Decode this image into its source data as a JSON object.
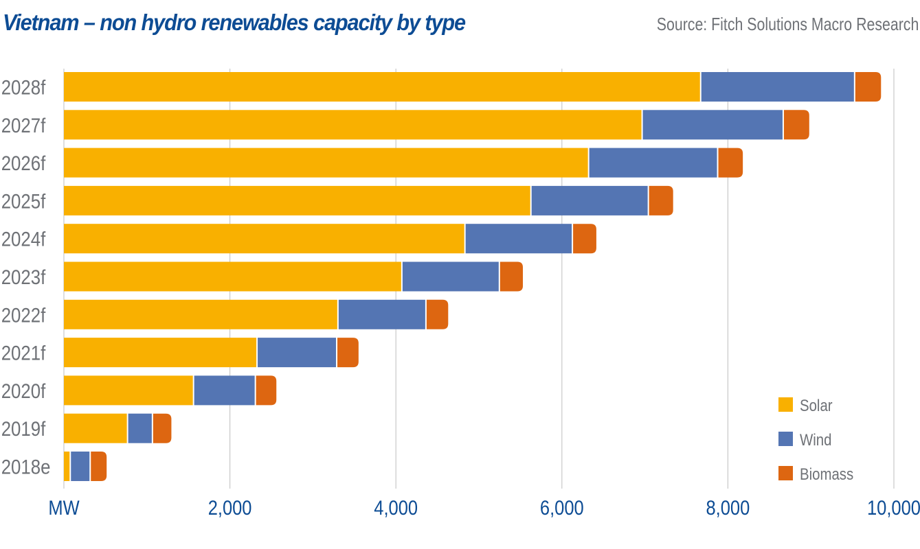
{
  "header": {
    "title": "Vietnam – non hydro renewables capacity by type",
    "source": "Source: Fitch Solutions Macro Research"
  },
  "colors": {
    "title": "#0D4C94",
    "muted_text": "#6E7176",
    "grid": "#C8C8C8",
    "Solar": "#F9B000",
    "Wind": "#5475B3",
    "Biomass": "#DD6611"
  },
  "chart_data": {
    "type": "bar",
    "orientation": "horizontal",
    "stacked": true,
    "title": "Vietnam – non hydro renewables capacity by type",
    "xlabel": "MW",
    "ylabel": "",
    "xlim": [
      0,
      10000
    ],
    "x_ticks": [
      0,
      2000,
      4000,
      6000,
      8000,
      10000
    ],
    "x_tick_labels": [
      "MW",
      "2,000",
      "4,000",
      "6,000",
      "8,000",
      "10,000"
    ],
    "grid": "vertical",
    "legend_position": "bottom-right",
    "categories": [
      "2028f",
      "2027f",
      "2026f",
      "2025f",
      "2024f",
      "2023f",
      "2022f",
      "2021f",
      "2020f",
      "2019f",
      "2018e"
    ],
    "series": [
      {
        "name": "Solar",
        "values": [
          7680,
          6975,
          6330,
          5635,
          4840,
          4080,
          3310,
          2335,
          1570,
          775,
          85
        ]
      },
      {
        "name": "Wind",
        "values": [
          1855,
          1700,
          1555,
          1415,
          1295,
          1175,
          1060,
          960,
          745,
          300,
          240
        ]
      },
      {
        "name": "Biomass",
        "values": [
          310,
          305,
          295,
          290,
          280,
          275,
          260,
          255,
          245,
          220,
          190
        ]
      }
    ],
    "source": "Source: Fitch Solutions Macro Research"
  }
}
